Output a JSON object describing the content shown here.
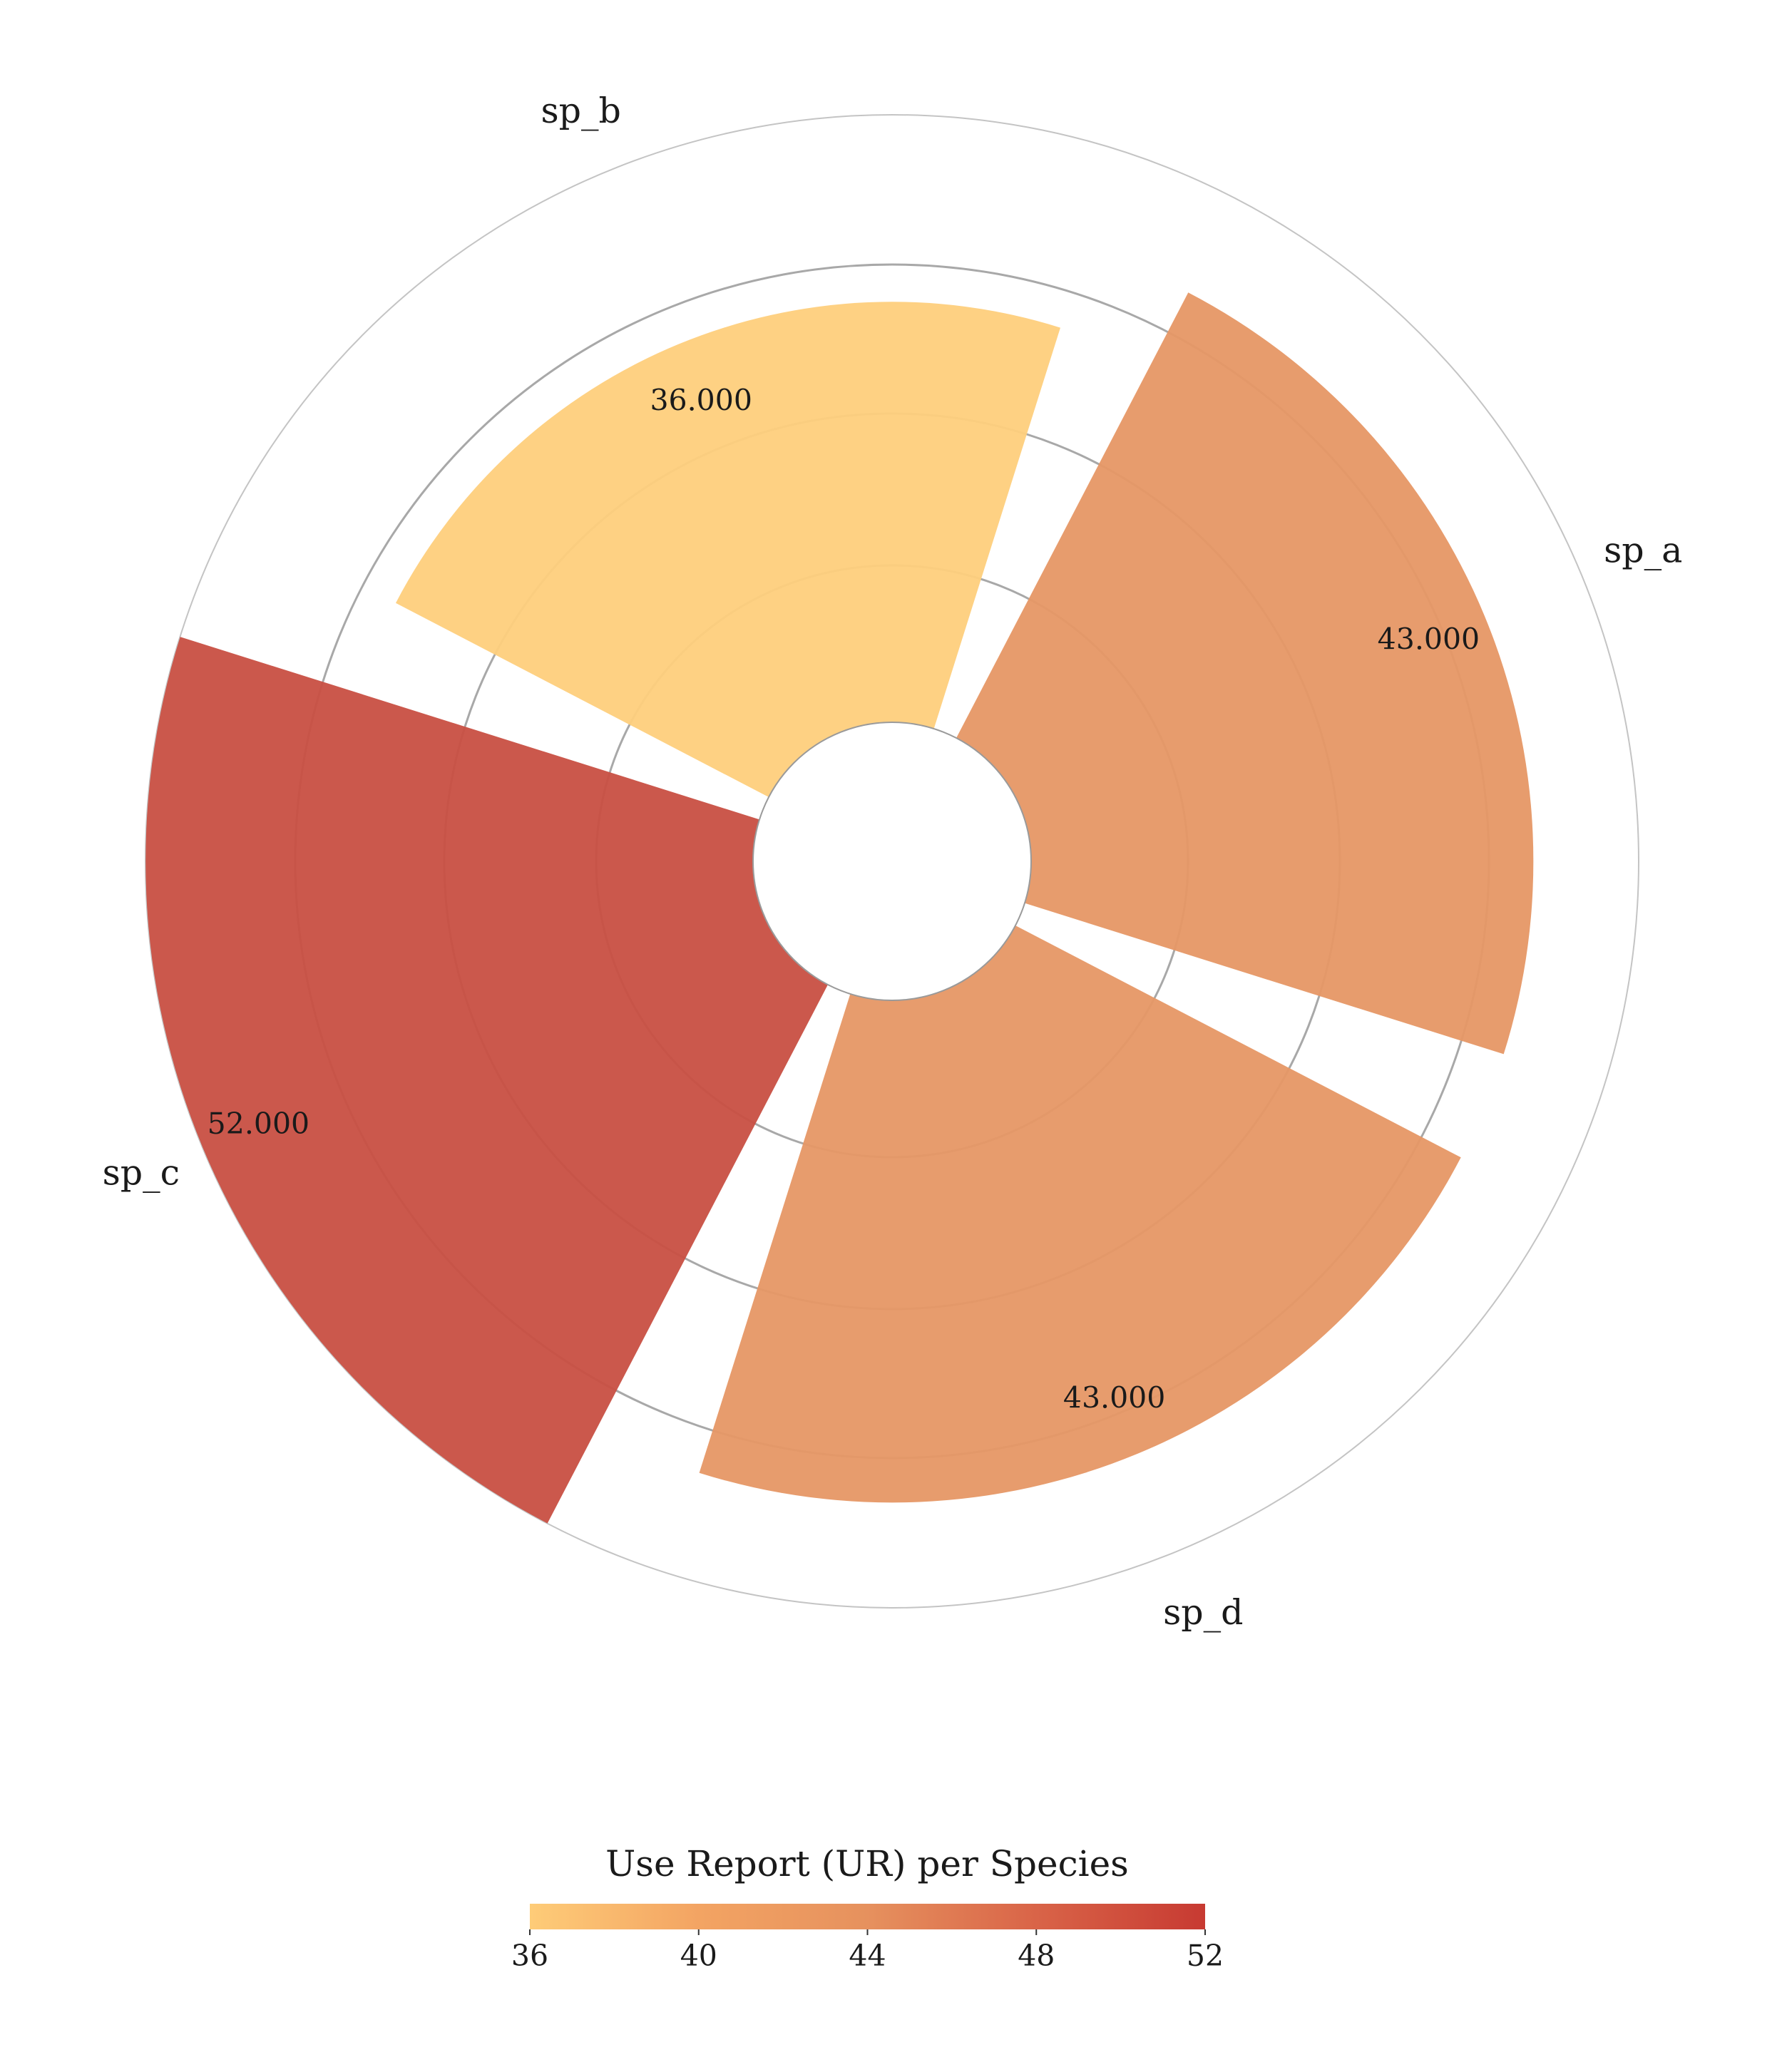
{
  "chart_data": {
    "type": "bar",
    "subtype": "polar-rose",
    "categories": [
      "sp_a",
      "sp_b",
      "sp_c",
      "sp_d"
    ],
    "values": [
      43.0,
      36.0,
      52.0,
      43.0
    ],
    "value_labels": [
      "43.000",
      "36.000",
      "52.000",
      "43.000"
    ],
    "colorbar": {
      "title": "Use Report (UR) per Species",
      "min": 36,
      "max": 52,
      "ticks": [
        "36",
        "40",
        "44",
        "48",
        "52"
      ],
      "colors": [
        "#fecc78",
        "#f3a463",
        "#e6915e",
        "#d96448",
        "#c73a32"
      ]
    },
    "bar_colors": [
      "#e69765",
      "#fecf7c",
      "#c84f42",
      "#e69765"
    ],
    "grid": true
  }
}
